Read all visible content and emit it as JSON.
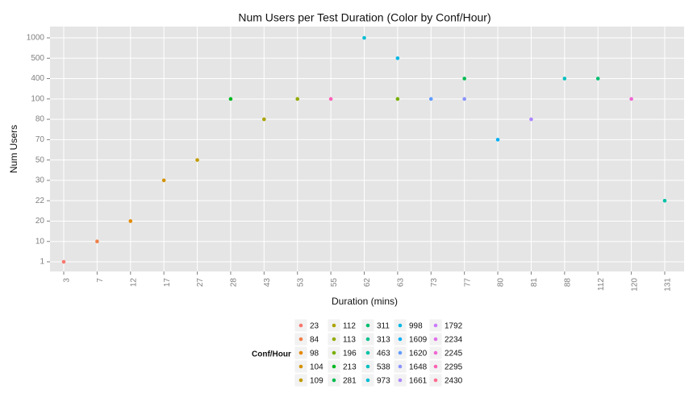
{
  "chart_data": {
    "type": "scatter",
    "title": "Num Users per Test Duration (Color by Conf/Hour)",
    "x_label": "Duration (mins)",
    "y_label": "Num Users",
    "legend_title": "Conf/Hour",
    "categories": [
      3,
      7,
      12,
      17,
      27,
      28,
      43,
      53,
      55,
      62,
      63,
      73,
      77,
      80,
      81,
      88,
      112,
      120,
      131
    ],
    "ycategories": [
      1,
      10,
      20,
      22,
      30,
      50,
      70,
      80,
      100,
      400,
      500,
      1000
    ],
    "grid": true,
    "series": [
      {
        "name": "23",
        "color": "#F8766D",
        "x": [
          3
        ],
        "values": [
          1
        ]
      },
      {
        "name": "84",
        "color": "#EF7F49",
        "x": [
          7
        ],
        "values": [
          10
        ]
      },
      {
        "name": "98",
        "color": "#E38900",
        "x": [
          12
        ],
        "values": [
          20
        ]
      },
      {
        "name": "104",
        "color": "#D49200",
        "x": [
          17
        ],
        "values": [
          30
        ]
      },
      {
        "name": "109",
        "color": "#C09B00",
        "x": [
          27
        ],
        "values": [
          50
        ]
      },
      {
        "name": "112",
        "color": "#ABA300",
        "x": [
          43
        ],
        "values": [
          80
        ]
      },
      {
        "name": "113",
        "color": "#93AA00",
        "x": [
          53
        ],
        "values": [
          100
        ]
      },
      {
        "name": "196",
        "color": "#77AF00",
        "x": [
          63
        ],
        "values": [
          100
        ]
      },
      {
        "name": "213",
        "color": "#00B81F",
        "x": [
          28
        ],
        "values": [
          100
        ]
      },
      {
        "name": "281",
        "color": "#00BB4E",
        "x": [
          77
        ],
        "values": [
          400
        ]
      },
      {
        "name": "311",
        "color": "#00BE70",
        "x": [
          112
        ],
        "values": [
          400
        ]
      },
      {
        "name": "313",
        "color": "#00C08D",
        "x": [],
        "values": []
      },
      {
        "name": "463",
        "color": "#00C1A7",
        "x": [
          131
        ],
        "values": [
          22
        ]
      },
      {
        "name": "538",
        "color": "#00C0BF",
        "x": [
          88
        ],
        "values": [
          400
        ]
      },
      {
        "name": "973",
        "color": "#00BDD4",
        "x": [
          62
        ],
        "values": [
          1000
        ]
      },
      {
        "name": "998",
        "color": "#00B8E5",
        "x": [
          63
        ],
        "values": [
          500
        ]
      },
      {
        "name": "1609",
        "color": "#00B0F6",
        "x": [
          80
        ],
        "values": [
          70
        ]
      },
      {
        "name": "1620",
        "color": "#619CFF",
        "x": [
          73
        ],
        "values": [
          100
        ]
      },
      {
        "name": "1648",
        "color": "#8B93FF",
        "x": [
          77
        ],
        "values": [
          100
        ]
      },
      {
        "name": "1661",
        "color": "#AE87FF",
        "x": [
          81
        ],
        "values": [
          80
        ]
      },
      {
        "name": "1792",
        "color": "#CB7BF9",
        "x": [],
        "values": []
      },
      {
        "name": "2234",
        "color": "#E16FEA",
        "x": [],
        "values": []
      },
      {
        "name": "2245",
        "color": "#F067D3",
        "x": [
          120
        ],
        "values": [
          100
        ]
      },
      {
        "name": "2295",
        "color": "#FB61B4",
        "x": [
          55
        ],
        "values": [
          100
        ]
      },
      {
        "name": "2430",
        "color": "#FF6C91",
        "x": [],
        "values": []
      }
    ]
  }
}
